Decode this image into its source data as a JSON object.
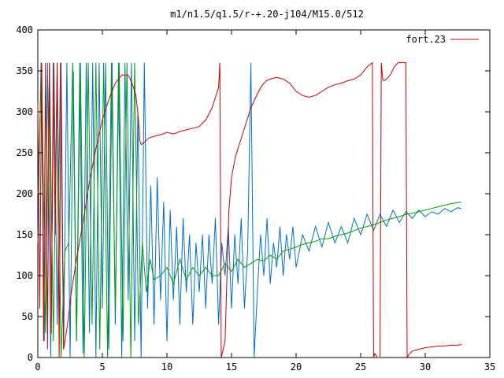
{
  "chart_data": {
    "type": "line",
    "title": "m1/n1.5/q1.5/r-+.20-j104/M15.0/512",
    "xlabel": "",
    "ylabel": "",
    "xlim": [
      0,
      35
    ],
    "ylim": [
      0,
      400
    ],
    "xticks": [
      0,
      5,
      10,
      15,
      20,
      25,
      30,
      35
    ],
    "yticks": [
      0,
      50,
      100,
      150,
      200,
      250,
      300,
      350,
      400
    ],
    "grid": false,
    "legend_position": "top-right",
    "series": [
      {
        "name": "fort.23",
        "color": "#cc0000",
        "in_legend": true,
        "x": [
          0.0,
          0.15,
          0.3,
          0.45,
          0.6,
          0.75,
          0.9,
          1.05,
          1.2,
          1.35,
          1.5,
          1.65,
          1.8,
          2.0,
          2.3,
          2.6,
          3.0,
          3.5,
          4.0,
          4.5,
          5.0,
          5.5,
          6.0,
          6.5,
          7.0,
          7.3,
          7.6,
          7.7,
          7.8,
          7.9,
          8.0,
          8.2,
          8.6,
          9.0,
          9.5,
          10.0,
          10.5,
          11.0,
          11.5,
          12.0,
          12.5,
          13.0,
          13.5,
          14.0,
          14.1,
          14.2,
          14.5,
          14.8,
          15.0,
          15.3,
          15.6,
          15.9,
          16.2,
          16.5,
          16.8,
          17.1,
          17.4,
          17.7,
          18.0,
          18.5,
          19.0,
          19.5,
          20.0,
          20.5,
          21.0,
          21.5,
          22.0,
          22.5,
          23.0,
          23.5,
          24.0,
          24.5,
          25.0,
          25.5,
          25.9,
          26.0,
          26.1,
          26.3,
          26.5,
          26.6,
          26.7,
          26.8,
          27.0,
          27.3,
          27.6,
          27.9,
          28.2,
          28.5,
          28.6,
          28.7,
          29.0,
          29.5,
          30.0,
          30.5,
          31.0,
          31.5,
          32.0,
          32.5,
          32.8
        ],
        "y": [
          310,
          60,
          360,
          20,
          360,
          10,
          360,
          30,
          360,
          150,
          360,
          0,
          360,
          10,
          40,
          80,
          120,
          165,
          215,
          255,
          290,
          315,
          335,
          345,
          345,
          335,
          320,
          305,
          290,
          265,
          260,
          262,
          268,
          270,
          272,
          275,
          273,
          276,
          278,
          280,
          282,
          290,
          305,
          330,
          360,
          0,
          20,
          180,
          220,
          245,
          260,
          275,
          290,
          305,
          315,
          325,
          333,
          338,
          340,
          342,
          340,
          335,
          325,
          320,
          318,
          320,
          325,
          330,
          333,
          335,
          338,
          340,
          345,
          355,
          360,
          0,
          5,
          0,
          0,
          360,
          340,
          338,
          340,
          345,
          355,
          360,
          360,
          360,
          0,
          3,
          8,
          10,
          12,
          13,
          14,
          14,
          15,
          15,
          16
        ]
      },
      {
        "name": "",
        "color": "#0070d0",
        "in_legend": false,
        "x": [
          0.0,
          0.25,
          0.5,
          0.75,
          1.0,
          1.25,
          1.5,
          1.75,
          2.0,
          2.25,
          2.5,
          2.75,
          3.0,
          3.25,
          3.5,
          3.75,
          4.0,
          4.25,
          4.5,
          4.75,
          5.0,
          5.25,
          5.5,
          5.75,
          6.0,
          6.25,
          6.5,
          6.75,
          7.0,
          7.25,
          7.5,
          7.75,
          8.0,
          8.25,
          8.5,
          8.75,
          9.0,
          9.25,
          9.5,
          9.75,
          10.0,
          10.25,
          10.5,
          10.75,
          11.0,
          11.25,
          11.5,
          11.75,
          12.0,
          12.25,
          12.5,
          12.75,
          13.0,
          13.25,
          13.5,
          13.75,
          14.0,
          14.25,
          14.5,
          14.75,
          15.0,
          15.25,
          15.5,
          15.75,
          16.0,
          16.25,
          16.5,
          16.75,
          17.0,
          17.25,
          17.5,
          17.75,
          18.0,
          18.25,
          18.5,
          18.75,
          19.0,
          19.25,
          19.5,
          19.75,
          20.0,
          20.5,
          21.0,
          21.5,
          22.0,
          22.5,
          23.0,
          23.5,
          24.0,
          24.5,
          25.0,
          25.5,
          26.0,
          26.5,
          27.0,
          27.5,
          28.0,
          28.5,
          29.0,
          29.5,
          30.0,
          30.5,
          31.0,
          31.5,
          32.0,
          32.5,
          32.8
        ],
        "y": [
          140,
          360,
          20,
          360,
          0,
          360,
          40,
          360,
          10,
          360,
          0,
          350,
          20,
          360,
          5,
          360,
          30,
          360,
          0,
          360,
          60,
          360,
          10,
          360,
          40,
          360,
          0,
          360,
          70,
          360,
          20,
          300,
          0,
          360,
          60,
          210,
          40,
          220,
          70,
          190,
          20,
          180,
          70,
          160,
          40,
          170,
          80,
          150,
          40,
          140,
          80,
          150,
          60,
          150,
          90,
          170,
          40,
          140,
          100,
          160,
          60,
          150,
          90,
          170,
          60,
          130,
          360,
          0,
          80,
          150,
          100,
          170,
          90,
          140,
          110,
          160,
          100,
          150,
          120,
          160,
          110,
          150,
          130,
          160,
          135,
          165,
          140,
          160,
          140,
          170,
          150,
          175,
          155,
          175,
          160,
          180,
          165,
          178,
          170,
          180,
          172,
          178,
          175,
          182,
          178,
          183,
          182
        ]
      },
      {
        "name": "",
        "color": "#00a000",
        "in_legend": false,
        "x": [
          0.0,
          0.3,
          0.6,
          0.9,
          1.2,
          1.5,
          1.8,
          2.1,
          2.4,
          2.7,
          3.0,
          3.3,
          3.6,
          3.9,
          4.2,
          4.5,
          4.8,
          5.1,
          5.4,
          5.7,
          6.0,
          6.3,
          6.6,
          6.9,
          7.2,
          7.5,
          7.8,
          8.1,
          8.4,
          8.7,
          9.0,
          9.5,
          10.0,
          10.5,
          11.0,
          11.5,
          12.0,
          12.5,
          13.0,
          13.5,
          14.0,
          14.5,
          15.0,
          15.5,
          16.0,
          16.5,
          17.0,
          17.5,
          18.0,
          18.5,
          19.0,
          19.5,
          20.0,
          20.5,
          21.0,
          21.5,
          22.0,
          22.5,
          23.0,
          23.5,
          24.0,
          24.5,
          25.0,
          25.5,
          26.0,
          26.5,
          27.0,
          27.5,
          28.0,
          28.5,
          29.0,
          29.5,
          30.0,
          30.5,
          31.0,
          31.5,
          32.0,
          32.5,
          32.8
        ],
        "y": [
          200,
          360,
          30,
          360,
          20,
          360,
          0,
          130,
          140,
          360,
          20,
          360,
          0,
          360,
          40,
          360,
          10,
          360,
          0,
          360,
          60,
          360,
          20,
          360,
          0,
          360,
          40,
          140,
          80,
          120,
          95,
          100,
          110,
          90,
          120,
          95,
          110,
          100,
          110,
          100,
          100,
          115,
          105,
          120,
          110,
          115,
          120,
          118,
          125,
          120,
          130,
          132,
          135,
          138,
          140,
          142,
          145,
          145,
          148,
          150,
          152,
          155,
          158,
          160,
          162,
          165,
          168,
          170,
          172,
          175,
          176,
          178,
          180,
          182,
          184,
          186,
          188,
          189,
          190
        ]
      }
    ]
  }
}
